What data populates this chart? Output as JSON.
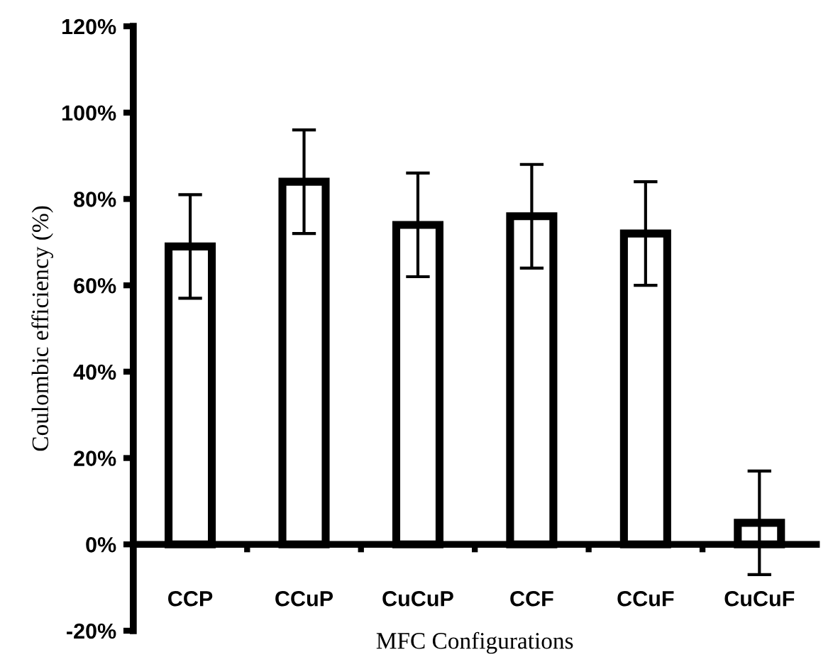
{
  "chart_data": {
    "type": "bar",
    "xlabel": "MFC Configurations",
    "ylabel": "Coulombic efficiency (%)",
    "categories": [
      "CCP",
      "CCuP",
      "CuCuP",
      "CCF",
      "CCuF",
      "CuCuF"
    ],
    "series": [
      {
        "color": "#ffffff",
        "values": [
          69,
          84,
          74,
          76,
          72,
          5
        ],
        "errors": [
          12,
          12,
          12,
          12,
          12,
          12
        ]
      }
    ],
    "ylim": [
      -20,
      120
    ],
    "yticks": [
      {
        "value": -20,
        "label": "-20%"
      },
      {
        "value": 0,
        "label": "0%"
      },
      {
        "value": 20,
        "label": "20%"
      },
      {
        "value": 40,
        "label": "40%"
      },
      {
        "value": 60,
        "label": "60%"
      },
      {
        "value": 80,
        "label": "80%"
      },
      {
        "value": 100,
        "label": "100%"
      },
      {
        "value": 120,
        "label": "120%"
      }
    ],
    "grid": false,
    "legend": false
  }
}
